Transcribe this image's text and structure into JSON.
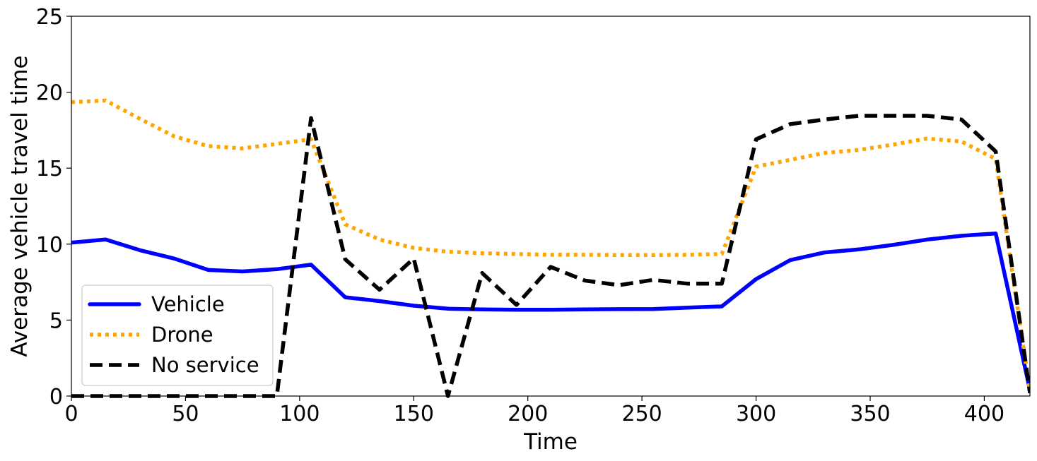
{
  "chart_data": {
    "type": "line",
    "title": "",
    "xlabel": "Time",
    "ylabel": "Average vehicle travel time",
    "xlim": [
      0,
      420
    ],
    "ylim": [
      0,
      25
    ],
    "xticks": [
      0,
      50,
      100,
      150,
      200,
      250,
      300,
      350,
      400
    ],
    "yticks": [
      0,
      5,
      10,
      15,
      20,
      25
    ],
    "grid": false,
    "legend": "lower-left",
    "series": [
      {
        "name": "Vehicle",
        "color": "#0000ff",
        "style": "solid",
        "x": [
          0,
          15,
          30,
          45,
          60,
          75,
          90,
          105,
          120,
          135,
          150,
          165,
          180,
          195,
          210,
          225,
          240,
          255,
          270,
          285,
          300,
          315,
          330,
          345,
          360,
          375,
          390,
          405,
          420
        ],
        "y": [
          10.1,
          10.3,
          9.6,
          9.05,
          8.3,
          8.2,
          8.35,
          8.65,
          6.5,
          6.25,
          5.95,
          5.75,
          5.7,
          5.68,
          5.68,
          5.7,
          5.72,
          5.73,
          5.82,
          5.9,
          7.7,
          8.95,
          9.45,
          9.65,
          9.95,
          10.3,
          10.55,
          10.7,
          0.4
        ]
      },
      {
        "name": "Drone",
        "color": "#ffa500",
        "style": "dotted",
        "x": [
          0,
          15,
          30,
          45,
          60,
          75,
          90,
          105,
          120,
          135,
          150,
          165,
          180,
          195,
          210,
          225,
          240,
          255,
          270,
          285,
          300,
          315,
          330,
          345,
          360,
          375,
          390,
          405,
          420
        ],
        "y": [
          19.35,
          19.45,
          18.25,
          17.1,
          16.45,
          16.3,
          16.6,
          16.9,
          11.3,
          10.3,
          9.75,
          9.5,
          9.4,
          9.35,
          9.3,
          9.3,
          9.28,
          9.28,
          9.3,
          9.35,
          15.1,
          15.55,
          16.0,
          16.2,
          16.55,
          16.95,
          16.75,
          15.6,
          0.3
        ]
      },
      {
        "name": "No service",
        "color": "#000000",
        "style": "dashed",
        "x": [
          0,
          15,
          30,
          45,
          60,
          75,
          90,
          105,
          120,
          135,
          150,
          165,
          180,
          195,
          210,
          225,
          240,
          255,
          270,
          285,
          300,
          315,
          330,
          345,
          360,
          375,
          390,
          405,
          420
        ],
        "y": [
          0,
          0,
          0,
          0,
          0,
          0,
          0,
          18.3,
          9.0,
          7.0,
          9.05,
          0,
          8.1,
          6.0,
          8.5,
          7.6,
          7.3,
          7.65,
          7.4,
          7.4,
          16.9,
          17.9,
          18.2,
          18.45,
          18.45,
          18.45,
          18.2,
          16.1,
          0.2
        ]
      }
    ]
  }
}
